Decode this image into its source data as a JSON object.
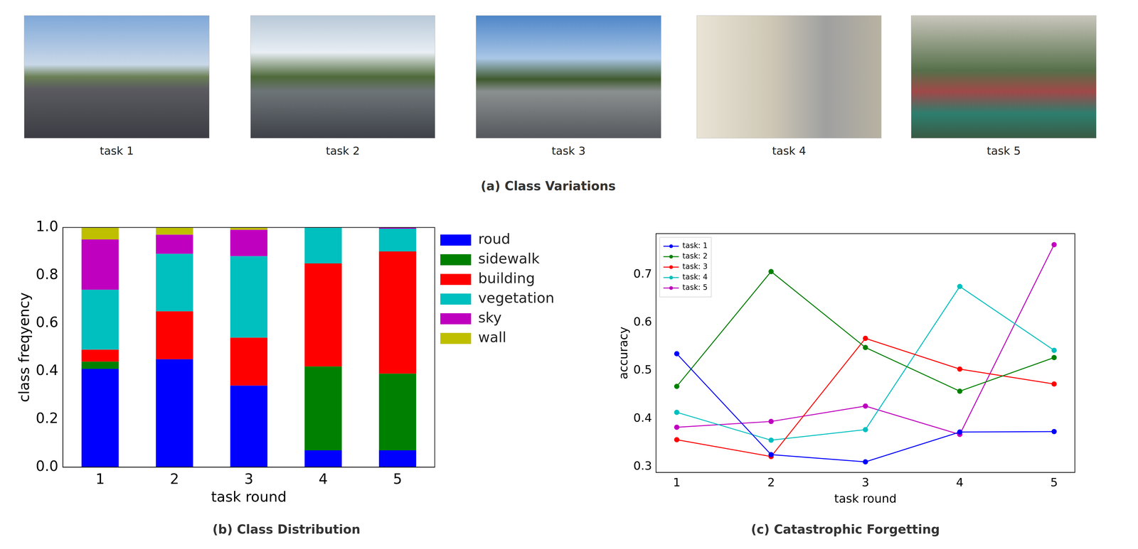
{
  "photos": {
    "labels": [
      "task 1",
      "task 2",
      "task 3",
      "task 4",
      "task 5"
    ],
    "caption": "(a) Class Variations"
  },
  "chart_data": [
    {
      "type": "bar",
      "title": "(b) Class Distribution",
      "x_label": "task round",
      "y_label": "class freqyency",
      "categories": [
        "1",
        "2",
        "3",
        "4",
        "5"
      ],
      "series": [
        {
          "name": "roud",
          "color": "#0000ff",
          "values": [
            0.41,
            0.45,
            0.34,
            0.07,
            0.07
          ]
        },
        {
          "name": "sidewalk",
          "color": "#008000",
          "values": [
            0.03,
            0,
            0,
            0.35,
            0.32
          ]
        },
        {
          "name": "building",
          "color": "#ff0000",
          "values": [
            0.05,
            0.2,
            0.2,
            0.43,
            0.51
          ]
        },
        {
          "name": "vegetation",
          "color": "#00bfbf",
          "values": [
            0.25,
            0.24,
            0.34,
            0.15,
            0.095
          ]
        },
        {
          "name": "sky",
          "color": "#bf00bf",
          "values": [
            0.21,
            0.08,
            0.11,
            0,
            0.005
          ]
        },
        {
          "name": "wall",
          "color": "#bfbf00",
          "values": [
            0.05,
            0.03,
            0.01,
            0,
            0
          ]
        }
      ],
      "stacked": true,
      "ylim": [
        0,
        1
      ],
      "yticks": [
        {
          "value": 0,
          "label": "0.0"
        },
        0.2,
        0.4,
        0.6,
        0.8,
        {
          "value": 1,
          "label": "1.0"
        }
      ],
      "grid": false,
      "legend": "right"
    },
    {
      "type": "line",
      "title": "(c) Catastrophic Forgetting",
      "x_label": "task round",
      "y_label": "accuracy",
      "x": [
        1,
        2,
        3,
        4,
        5
      ],
      "series": [
        {
          "name": "task: 1",
          "color": "#0000ff",
          "values": [
            0.535,
            0.325,
            0.31,
            0.372,
            0.373
          ]
        },
        {
          "name": "task: 2",
          "color": "#008000",
          "values": [
            0.467,
            0.706,
            0.548,
            0.457,
            0.527
          ]
        },
        {
          "name": "task: 3",
          "color": "#ff0000",
          "values": [
            0.356,
            0.321,
            0.567,
            0.503,
            0.472
          ]
        },
        {
          "name": "task: 4",
          "color": "#00bfbf",
          "values": [
            0.413,
            0.355,
            0.377,
            0.675,
            0.542
          ]
        },
        {
          "name": "task: 5",
          "color": "#bf00bf",
          "values": [
            0.382,
            0.394,
            0.426,
            0.367,
            0.762
          ]
        }
      ],
      "xlim": [
        0.78,
        5.22
      ],
      "xticks": [
        1,
        2,
        3,
        4,
        5
      ],
      "ylim": [
        0.288,
        0.785
      ],
      "yticks": [
        0.3,
        0.4,
        0.5,
        0.6,
        0.7
      ],
      "grid": false,
      "legend": "upper left",
      "marker": "circle",
      "line_style": "solid"
    }
  ]
}
